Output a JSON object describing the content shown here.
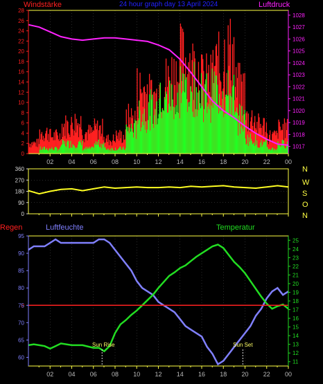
{
  "colors": {
    "wind": "#ff2020",
    "gust": "#ff2020",
    "wind_avg": "#22ff22",
    "pressure": "#ff22ff",
    "direction": "#ffff22",
    "humidity": "#8080ff",
    "temperature": "#22dd22",
    "rain": "#ff2020",
    "axis_left_red": "#ff2020",
    "axis_pressure": "#ff22ff",
    "axis_temp": "#22dd22",
    "axis_hum": "#8080ff",
    "frame": "#ffff44",
    "title": "#2222ff",
    "x_ticks": "#bbbbbb"
  },
  "header": {
    "left": "Windstärke",
    "center": "24 hour graph day  13 April 2024",
    "right": "Luftdruck"
  },
  "compass": {
    "letters": [
      "N",
      "W",
      "S",
      "O",
      "N"
    ]
  },
  "lower_labels": {
    "regen": "Regen",
    "luftfeuchte": "Luftfeuchte",
    "temperatur": "Temperatur",
    "sun_rise": "Sun Rise",
    "sun_set": "Sun Set"
  },
  "chart_data": [
    {
      "type": "bar",
      "title": "",
      "left_axis": {
        "label": "Windstärke",
        "ticks": [
          "0",
          "2",
          "4",
          "6",
          "8",
          "10",
          "12",
          "14",
          "16",
          "18",
          "20",
          "22",
          "24",
          "26",
          "28"
        ],
        "ylim": [
          0,
          28
        ]
      },
      "right_axis": {
        "label": "Luftdruck",
        "ticks": [
          "1017",
          "1018",
          "1019",
          "1020",
          "1021",
          "1022",
          "1023",
          "1024",
          "1025",
          "1026",
          "1027",
          "1028"
        ],
        "ylim": [
          1016.4,
          1028.4
        ]
      },
      "x_ticks": [
        "02",
        "04",
        "06",
        "08",
        "10",
        "12",
        "14",
        "16",
        "18",
        "20",
        "22",
        "00"
      ],
      "xlim": [
        0,
        24
      ],
      "series": [
        {
          "name": "gust_hourly_max",
          "x": [
            0,
            1,
            2,
            3,
            4,
            5,
            6,
            7,
            8,
            9,
            10,
            11,
            12,
            13,
            14,
            15,
            16,
            17,
            18,
            19,
            20,
            21,
            22,
            23
          ],
          "values": [
            3,
            6,
            5,
            8,
            9,
            6,
            7,
            4,
            5,
            10,
            18,
            16,
            20,
            22,
            26,
            24,
            20,
            24,
            28,
            18,
            10,
            8,
            5,
            7
          ]
        },
        {
          "name": "wind_hourly_mean",
          "x": [
            0,
            1,
            2,
            3,
            4,
            5,
            6,
            7,
            8,
            9,
            10,
            11,
            12,
            13,
            14,
            15,
            16,
            17,
            18,
            19,
            20,
            21,
            22,
            23
          ],
          "values": [
            0,
            1,
            1,
            2,
            2,
            1,
            2,
            1,
            1,
            5,
            8,
            9,
            11,
            12,
            14,
            14,
            12,
            13,
            12,
            7,
            3,
            2,
            1,
            2
          ]
        },
        {
          "name": "pressure",
          "x": [
            0,
            1,
            2,
            3,
            4,
            5,
            6,
            7,
            8,
            9,
            10,
            11,
            12,
            13,
            14,
            15,
            16,
            17,
            18,
            19,
            20,
            21,
            22,
            23,
            24
          ],
          "values": [
            1027.2,
            1027.0,
            1026.6,
            1026.2,
            1026.0,
            1025.9,
            1026.0,
            1026.1,
            1026.1,
            1026.0,
            1025.9,
            1025.8,
            1025.5,
            1025.1,
            1024.3,
            1023.2,
            1022.0,
            1020.8,
            1020.0,
            1019.4,
            1018.7,
            1018.1,
            1017.6,
            1017.2,
            1017.1
          ]
        }
      ]
    },
    {
      "type": "line",
      "title": "",
      "left_axis": {
        "ticks": [
          "0",
          "90",
          "180",
          "270",
          "360"
        ],
        "ylim": [
          0,
          360
        ]
      },
      "x_ticks": [
        "02",
        "04",
        "06",
        "08",
        "10",
        "12",
        "14",
        "16",
        "18",
        "20",
        "22",
        "00"
      ],
      "xlim": [
        0,
        24
      ],
      "series": [
        {
          "name": "wind_direction",
          "x": [
            0,
            1,
            2,
            3,
            4,
            5,
            6,
            7,
            8,
            9,
            10,
            11,
            12,
            13,
            14,
            15,
            16,
            17,
            18,
            19,
            20,
            21,
            22,
            23,
            24
          ],
          "values": [
            185,
            160,
            180,
            195,
            200,
            185,
            200,
            215,
            205,
            210,
            215,
            210,
            210,
            215,
            210,
            220,
            215,
            220,
            225,
            215,
            210,
            205,
            215,
            225,
            215
          ]
        }
      ]
    },
    {
      "type": "line",
      "title": "",
      "left_axis": {
        "label": "Luftfeuchte",
        "ticks": [
          "60",
          "65",
          "70",
          "75",
          "80",
          "85",
          "90",
          "95"
        ],
        "ylim": [
          57.5,
          95
        ]
      },
      "right_axis": {
        "label": "Temperatur",
        "ticks": [
          "11",
          "12",
          "13",
          "14",
          "15",
          "16",
          "17",
          "18",
          "19",
          "20",
          "21",
          "22",
          "23",
          "24",
          "25"
        ],
        "ylim": [
          10.5,
          25.5
        ]
      },
      "rain_line": {
        "label": "Regen",
        "value": "0"
      },
      "x_ticks": [
        "02",
        "04",
        "06",
        "08",
        "10",
        "12",
        "14",
        "16",
        "18",
        "20",
        "22",
        "00"
      ],
      "xlim": [
        0,
        24
      ],
      "series": [
        {
          "name": "humidity",
          "x": [
            0,
            0.5,
            1,
            1.5,
            2,
            2.5,
            3,
            4,
            5,
            6,
            6.5,
            7,
            7.5,
            8,
            8.5,
            9,
            9.5,
            10,
            10.5,
            11,
            11.5,
            12,
            12.5,
            13,
            13.5,
            14,
            14.5,
            15,
            15.5,
            16,
            16.5,
            17,
            17.5,
            18,
            18.5,
            19,
            19.5,
            20,
            20.5,
            21,
            21.5,
            22,
            22.5,
            23,
            23.5,
            24
          ],
          "values": [
            91,
            92,
            92,
            92,
            93,
            94,
            93,
            93,
            93,
            93,
            94,
            94,
            93,
            91,
            89,
            87,
            85,
            82,
            80,
            79,
            78,
            76,
            75,
            74,
            73,
            71,
            69,
            68,
            67,
            66,
            63,
            61,
            58,
            59,
            61,
            63,
            65,
            67,
            69,
            72,
            74,
            77,
            79,
            80,
            78,
            79
          ]
        },
        {
          "name": "temperature",
          "x": [
            0,
            0.5,
            1,
            1.5,
            2,
            2.5,
            3,
            4,
            5,
            6,
            6.5,
            7,
            7.5,
            8,
            8.5,
            9,
            9.5,
            10,
            10.5,
            11,
            11.5,
            12,
            12.5,
            13,
            13.5,
            14,
            14.5,
            15,
            15.5,
            16,
            16.5,
            17,
            17.5,
            18,
            18.5,
            19,
            19.5,
            20,
            20.5,
            21,
            21.5,
            22,
            22.5,
            23,
            23.5,
            24
          ],
          "values": [
            12.9,
            13.0,
            12.9,
            12.8,
            12.5,
            12.8,
            13.1,
            12.9,
            12.9,
            12.6,
            12.6,
            12.2,
            12.8,
            14.3,
            15.3,
            15.8,
            16.4,
            16.9,
            17.5,
            18.1,
            18.7,
            19.5,
            20.2,
            20.9,
            21.3,
            21.8,
            22.1,
            22.6,
            23.1,
            23.5,
            23.9,
            24.3,
            24.5,
            24.1,
            23.3,
            22.5,
            21.9,
            21.2,
            20.3,
            19.4,
            18.5,
            17.7,
            17.1,
            17.4,
            17.6,
            17.1
          ]
        }
      ]
    }
  ]
}
